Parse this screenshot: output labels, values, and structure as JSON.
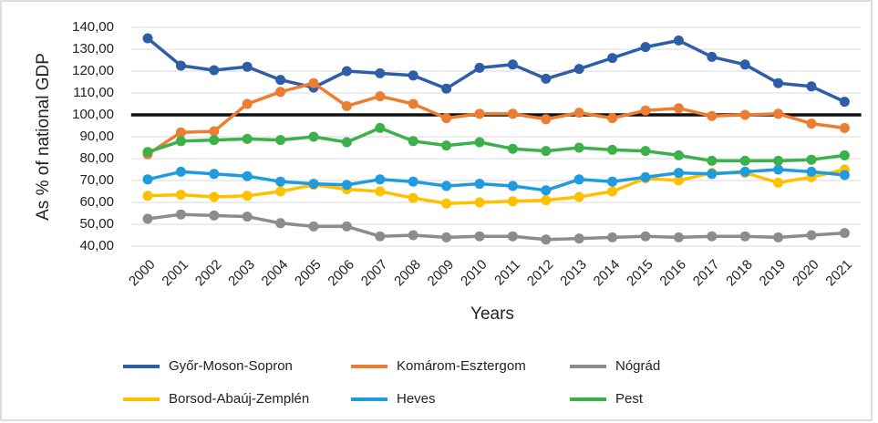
{
  "chart_data": {
    "type": "line",
    "y_axis_label": "As % of national GDP",
    "x_axis_label": "Years",
    "categories": [
      "2000",
      "2001",
      "2002",
      "2003",
      "2004",
      "2005",
      "2006",
      "2007",
      "2008",
      "2009",
      "2010",
      "2011",
      "2012",
      "2013",
      "2014",
      "2015",
      "2016",
      "2017",
      "2018",
      "2019",
      "2020",
      "2021"
    ],
    "series": [
      {
        "name": "Győr-Moson-Sopron",
        "color": "#2e5ea8",
        "values": [
          135,
          122.5,
          120.4,
          122,
          116,
          112.5,
          120,
          119,
          118,
          112,
          121.5,
          123,
          116.5,
          121,
          126,
          131,
          134,
          126.5,
          123,
          114.5,
          113,
          106
        ]
      },
      {
        "name": "Komárom-Esztergom",
        "color": "#ed7d31",
        "values": [
          82,
          92,
          92.5,
          105,
          110.5,
          114.5,
          104,
          108.5,
          105,
          98.5,
          100.5,
          100.5,
          98,
          101,
          98.5,
          102,
          103,
          99.5,
          100,
          100.5,
          96,
          94
        ]
      },
      {
        "name": "Nógrád",
        "color": "#8c8c8c",
        "values": [
          52.5,
          54.5,
          54,
          53.5,
          50.5,
          49,
          49,
          44.5,
          45,
          44,
          44.5,
          44.5,
          43,
          43.5,
          44,
          44.5,
          44,
          44.5,
          44.5,
          44,
          45,
          46
        ]
      },
      {
        "name": "Borsod-Abaúj-Zemplén",
        "color": "#ffc000",
        "values": [
          63,
          63.5,
          62.5,
          63,
          65,
          68,
          66,
          65,
          62,
          59.5,
          60,
          60.5,
          61,
          62.5,
          65,
          71,
          70,
          73.5,
          73.5,
          69,
          71.5,
          75
        ]
      },
      {
        "name": "Heves",
        "color": "#1f9bde",
        "values": [
          70.5,
          74,
          73,
          72,
          69.5,
          68.5,
          68,
          70.5,
          69.5,
          67.5,
          68.5,
          67.5,
          65.5,
          70.5,
          69.5,
          71.5,
          73.5,
          73,
          74,
          75,
          74,
          72.5
        ]
      },
      {
        "name": "Pest",
        "color": "#3cb04a",
        "values": [
          83,
          88,
          88.5,
          89,
          88.5,
          90,
          87.5,
          94,
          88,
          86,
          87.5,
          84.5,
          83.5,
          85,
          84,
          83.5,
          81.5,
          79,
          79,
          79,
          79.5,
          81.5
        ]
      }
    ],
    "reference_line": 100,
    "ylim": [
      40,
      140
    ],
    "yticks": [
      {
        "value": 40,
        "label": "40,00"
      },
      {
        "value": 50,
        "label": "50,00"
      },
      {
        "value": 60,
        "label": "60,00"
      },
      {
        "value": 70,
        "label": "70,00"
      },
      {
        "value": 80,
        "label": "80,00"
      },
      {
        "value": 90,
        "label": "90,00"
      },
      {
        "value": 100,
        "label": "100,00"
      },
      {
        "value": 110,
        "label": "110,00"
      },
      {
        "value": 120,
        "label": "120,00"
      },
      {
        "value": 130,
        "label": "130,00"
      },
      {
        "value": 140,
        "label": "140,00"
      }
    ],
    "grid": true,
    "legend": "bottom"
  }
}
